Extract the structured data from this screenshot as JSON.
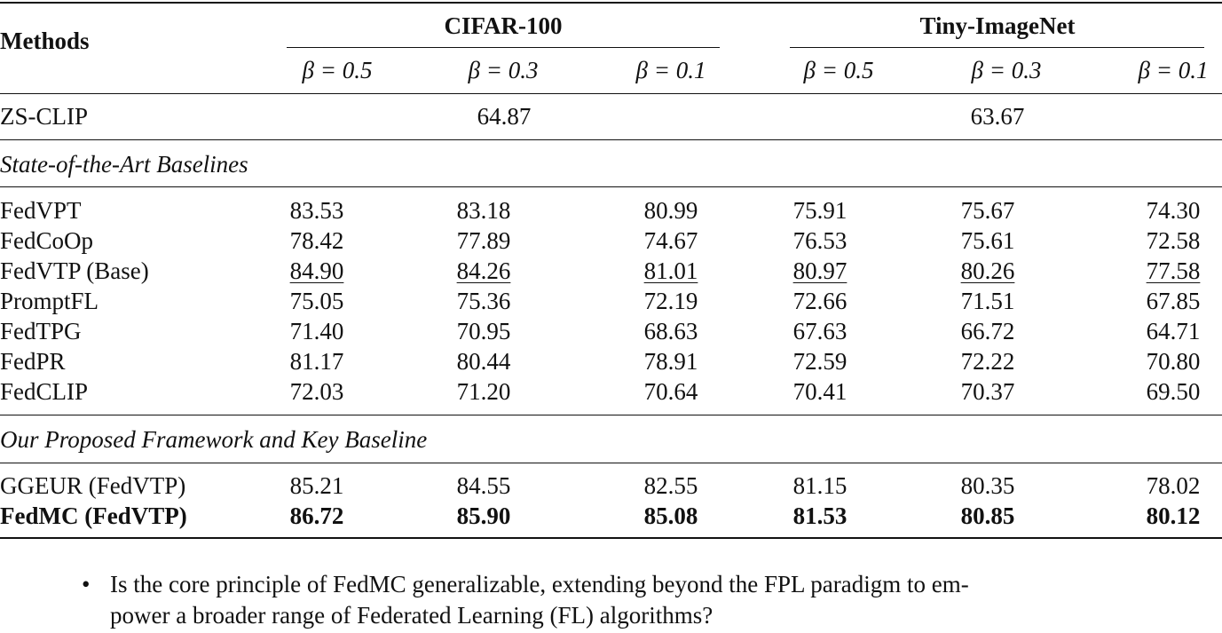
{
  "table": {
    "methods_header": "Methods",
    "groups": [
      {
        "name": "CIFAR-100"
      },
      {
        "name": "Tiny-ImageNet"
      }
    ],
    "beta_headers": [
      "β = 0.5",
      "β = 0.3",
      "β = 0.1",
      "β = 0.5",
      "β = 0.3",
      "β = 0.1"
    ],
    "zs_clip": {
      "method": "ZS-CLIP",
      "cifar": "64.87",
      "tiny": "63.67"
    },
    "section1": "State-of-the-Art Baselines",
    "baselines": [
      {
        "method": "FedVPT",
        "values": [
          "83.53",
          "83.18",
          "80.99",
          "75.91",
          "75.67",
          "74.30"
        ],
        "underline": false
      },
      {
        "method": "FedCoOp",
        "values": [
          "78.42",
          "77.89",
          "74.67",
          "76.53",
          "75.61",
          "72.58"
        ],
        "underline": false
      },
      {
        "method": "FedVTP (Base)",
        "values": [
          "84.90",
          "84.26",
          "81.01",
          "80.97",
          "80.26",
          "77.58"
        ],
        "underline": true
      },
      {
        "method": "PromptFL",
        "values": [
          "75.05",
          "75.36",
          "72.19",
          "72.66",
          "71.51",
          "67.85"
        ],
        "underline": false
      },
      {
        "method": "FedTPG",
        "values": [
          "71.40",
          "70.95",
          "68.63",
          "67.63",
          "66.72",
          "64.71"
        ],
        "underline": false
      },
      {
        "method": "FedPR",
        "values": [
          "81.17",
          "80.44",
          "78.91",
          "72.59",
          "72.22",
          "70.80"
        ],
        "underline": false
      },
      {
        "method": "FedCLIP",
        "values": [
          "72.03",
          "71.20",
          "70.64",
          "70.41",
          "70.37",
          "69.50"
        ],
        "underline": false
      }
    ],
    "section2": "Our Proposed Framework and Key Baseline",
    "proposed": [
      {
        "method": "GGEUR (FedVTP)",
        "values": [
          "85.21",
          "84.55",
          "82.55",
          "81.15",
          "80.35",
          "78.02"
        ],
        "bold": false
      },
      {
        "method": "FedMC (FedVTP)",
        "values": [
          "86.72",
          "85.90",
          "85.08",
          "81.53",
          "80.85",
          "80.12"
        ],
        "bold": true
      }
    ]
  },
  "bullet": {
    "line1": "Is the core principle of FedMC generalizable, extending beyond the FPL paradigm to em-",
    "line2": "power a broader range of Federated Learning (FL) algorithms?"
  }
}
